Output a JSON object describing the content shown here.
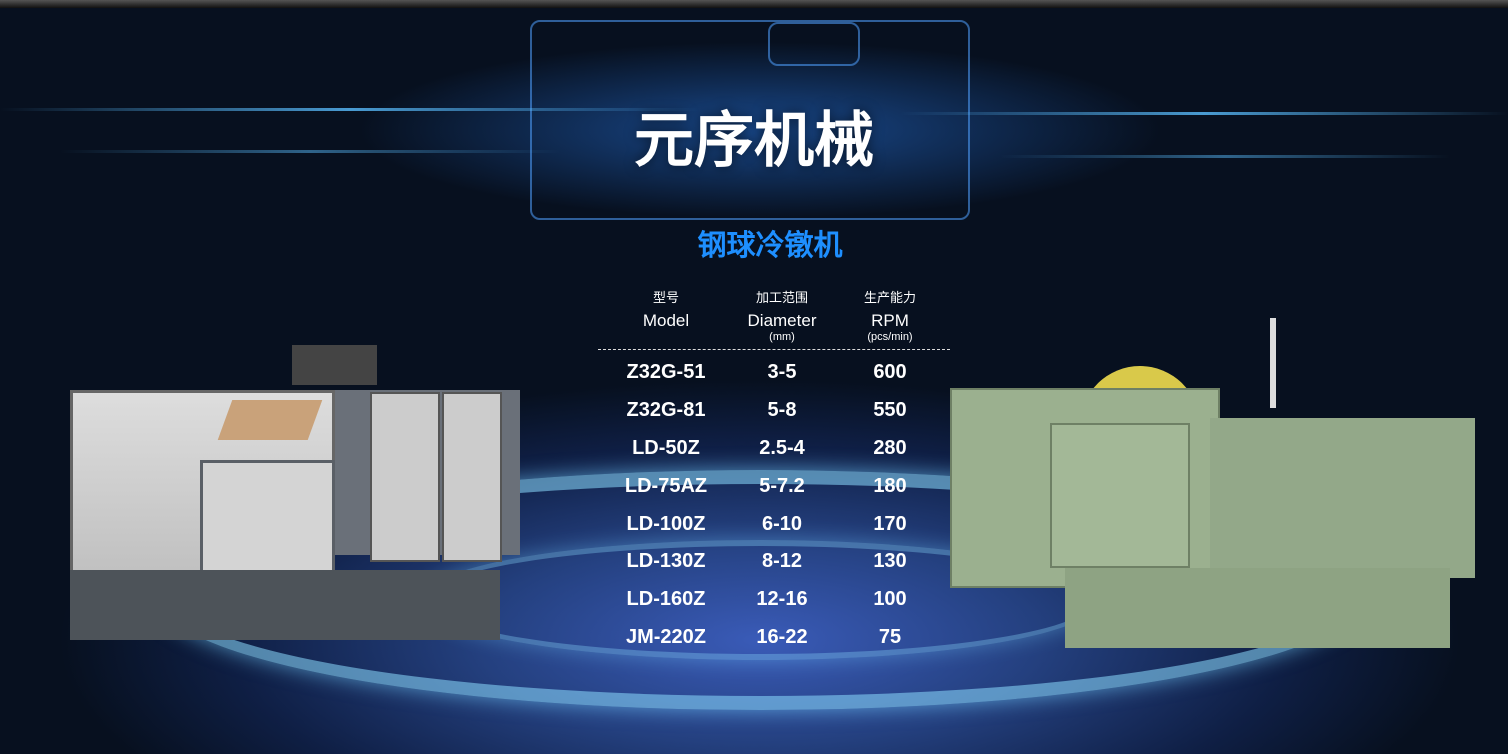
{
  "header": {
    "title": "元序机械",
    "subtitle": "钢球冷镦机"
  },
  "table": {
    "columns": [
      {
        "zh": "型号",
        "en": "Model",
        "unit": ""
      },
      {
        "zh": "加工范围",
        "en": "Diameter",
        "unit": "(mm)"
      },
      {
        "zh": "生产能力",
        "en": "RPM",
        "unit": "(pcs/min)"
      }
    ],
    "rows": [
      [
        "Z32G-51",
        "3-5",
        "600"
      ],
      [
        "Z32G-81",
        "5-8",
        "550"
      ],
      [
        "LD-50Z",
        "2.5-4",
        "280"
      ],
      [
        "LD-75AZ",
        "5-7.2",
        "180"
      ],
      [
        "LD-100Z",
        "6-10",
        "170"
      ],
      [
        "LD-130Z",
        "8-12",
        "130"
      ],
      [
        "LD-160Z",
        "12-16",
        "100"
      ],
      [
        "JM-220Z",
        "16-22",
        "75"
      ]
    ]
  },
  "colors": {
    "accent": "#1e8fff",
    "background": "#0f1f45"
  }
}
